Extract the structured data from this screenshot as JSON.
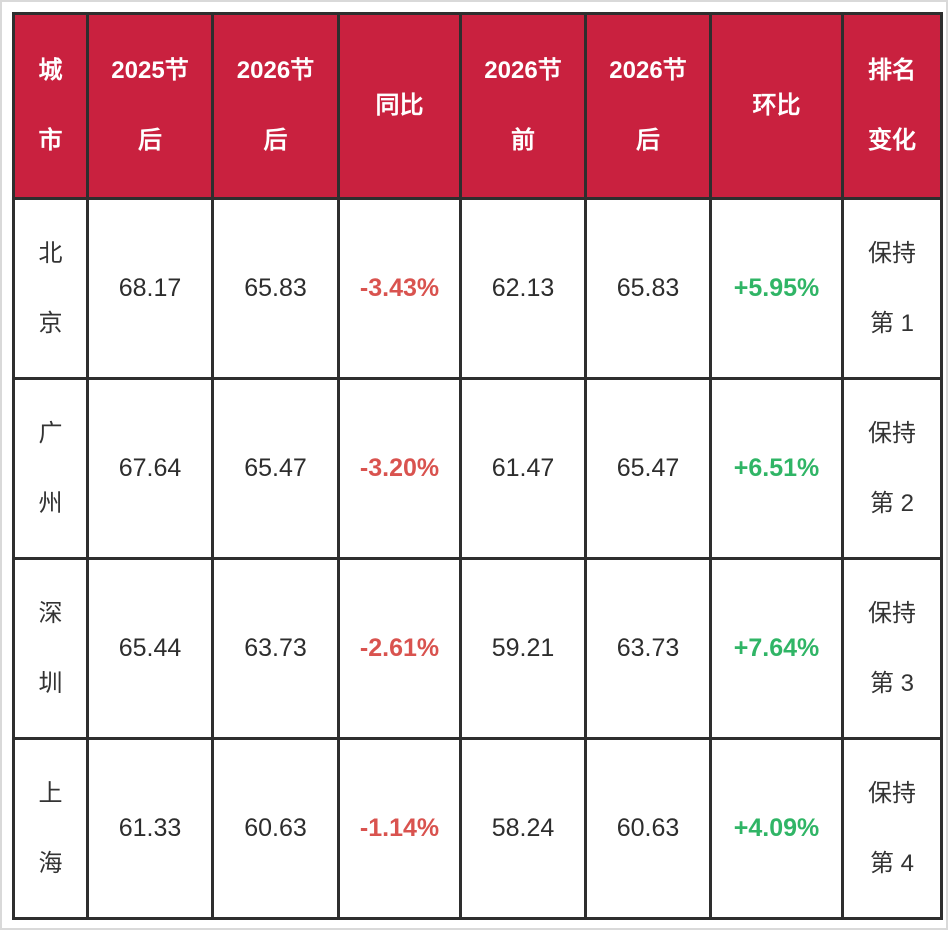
{
  "colors": {
    "header_bg": "#c9213f",
    "header_text": "#ffffff",
    "border": "#2e2e2e",
    "cell_bg": "#ffffff",
    "value_text": "#2d2d2d",
    "negative": "#d9534f",
    "positive": "#30b566"
  },
  "table": {
    "header": [
      {
        "name": "city",
        "lines": [
          "城",
          "市"
        ]
      },
      {
        "name": "post-2025",
        "lines": [
          "2025节",
          "后"
        ]
      },
      {
        "name": "post-2026",
        "lines": [
          "2026节",
          "后"
        ]
      },
      {
        "name": "yoy",
        "lines": [
          "同比"
        ]
      },
      {
        "name": "pre-2026",
        "lines": [
          "2026节",
          "前"
        ]
      },
      {
        "name": "post-2026-b",
        "lines": [
          "2026节",
          "后"
        ]
      },
      {
        "name": "mom",
        "lines": [
          "环比"
        ]
      },
      {
        "name": "rank-change",
        "lines": [
          "排名",
          "变化"
        ]
      }
    ],
    "rows": [
      {
        "cells": [
          {
            "lines": [
              "北",
              "京"
            ],
            "style": "city"
          },
          {
            "text": "68.17"
          },
          {
            "text": "65.83"
          },
          {
            "text": "-3.43%",
            "style": "neg"
          },
          {
            "text": "62.13"
          },
          {
            "text": "65.83"
          },
          {
            "text": "+5.95%",
            "style": "pos"
          },
          {
            "lines": [
              "保持",
              "第 1"
            ],
            "style": "rank"
          }
        ]
      },
      {
        "cells": [
          {
            "lines": [
              "广",
              "州"
            ],
            "style": "city"
          },
          {
            "text": "67.64"
          },
          {
            "text": "65.47"
          },
          {
            "text": "-3.20%",
            "style": "neg"
          },
          {
            "text": "61.47"
          },
          {
            "text": "65.47"
          },
          {
            "text": "+6.51%",
            "style": "pos"
          },
          {
            "lines": [
              "保持",
              "第 2"
            ],
            "style": "rank"
          }
        ]
      },
      {
        "cells": [
          {
            "lines": [
              "深",
              "圳"
            ],
            "style": "city"
          },
          {
            "text": "65.44"
          },
          {
            "text": "63.73"
          },
          {
            "text": "-2.61%",
            "style": "neg"
          },
          {
            "text": "59.21"
          },
          {
            "text": "63.73"
          },
          {
            "text": "+7.64%",
            "style": "pos"
          },
          {
            "lines": [
              "保持",
              "第 3"
            ],
            "style": "rank"
          }
        ]
      },
      {
        "cells": [
          {
            "lines": [
              "上",
              "海"
            ],
            "style": "city"
          },
          {
            "text": "61.33"
          },
          {
            "text": "60.63"
          },
          {
            "text": "-1.14%",
            "style": "neg"
          },
          {
            "text": "58.24"
          },
          {
            "text": "60.63"
          },
          {
            "text": "+4.09%",
            "style": "pos"
          },
          {
            "lines": [
              "保持",
              "第 4"
            ],
            "style": "rank"
          }
        ]
      }
    ]
  },
  "chart_data": {
    "type": "table",
    "columns": [
      "城市",
      "2025节后",
      "2026节后",
      "同比",
      "2026节前",
      "2026节后",
      "环比",
      "排名变化"
    ],
    "rows": [
      [
        "北京",
        68.17,
        65.83,
        "-3.43%",
        62.13,
        65.83,
        "+5.95%",
        "保持第1"
      ],
      [
        "广州",
        67.64,
        65.47,
        "-3.20%",
        61.47,
        65.47,
        "+6.51%",
        "保持第2"
      ],
      [
        "深圳",
        65.44,
        63.73,
        "-2.61%",
        59.21,
        63.73,
        "+7.64%",
        "保持第3"
      ],
      [
        "上海",
        61.33,
        60.63,
        "-1.14%",
        58.24,
        60.63,
        "+4.09%",
        "保持第4"
      ]
    ],
    "notes": "negative values shown in red, positive values in green, rank column shows 保持 (kept) + rank number"
  }
}
